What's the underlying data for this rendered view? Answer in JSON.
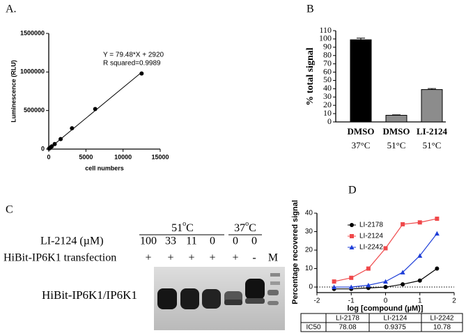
{
  "chart_data": [
    {
      "type": "scatter",
      "panel_label": "A.",
      "y_label": "Luminescence (RLU)",
      "x_label": "cell numbers",
      "annotations": [
        "Y = 79.48*X + 2920",
        "R squared=0.9989"
      ],
      "x": [
        50,
        100,
        200,
        400,
        800,
        1600,
        3125,
        6250,
        12500
      ],
      "values": [
        7000,
        11000,
        19000,
        35000,
        66000,
        130000,
        270000,
        520000,
        980000
      ],
      "fit": {
        "x": [
          0,
          12500
        ],
        "values": [
          2920,
          996420
        ]
      },
      "color": "#000000",
      "xlim": [
        0,
        15000
      ],
      "xticks": [
        0,
        5000,
        10000,
        15000
      ],
      "ylim": [
        0,
        1500000
      ],
      "yticks": [
        0,
        500000,
        1000000,
        1500000
      ]
    },
    {
      "type": "bar",
      "panel_label": "B",
      "y_label": "% total signal",
      "categories": [
        "DMSO",
        "DMSO",
        "LI-2124"
      ],
      "subcategories": [
        "37°C",
        "51°C",
        "51°C"
      ],
      "values": [
        99,
        8,
        39
      ],
      "errors": [
        2,
        0.5,
        1.2
      ],
      "colors": [
        "#000000",
        "#8c8c8c",
        "#8c8c8c"
      ],
      "ylim": [
        0,
        110
      ],
      "yticks": [
        0,
        10,
        20,
        30,
        40,
        50,
        60,
        70,
        80,
        90,
        100,
        110
      ]
    },
    {
      "type": "line",
      "panel_label": "D",
      "y_label": "Percentage recovered signal",
      "x_label": "log [compound (µM)]",
      "x": [
        -1.5,
        -1,
        -0.5,
        0,
        0.5,
        1,
        1.5
      ],
      "series": [
        {
          "name": "LI-2178",
          "color": "#000000",
          "marker": "circle",
          "values": [
            -1,
            -1,
            -0.5,
            0,
            1.5,
            3.5,
            10
          ]
        },
        {
          "name": "LI-2124",
          "color": "#f0484a",
          "marker": "square",
          "values": [
            3,
            5,
            10,
            21,
            34,
            35,
            37
          ]
        },
        {
          "name": "LI-2242",
          "color": "#1f3fd8",
          "marker": "triangle",
          "values": [
            0,
            0,
            1,
            3,
            8,
            17,
            29
          ]
        }
      ],
      "xlim": [
        -2,
        2
      ],
      "xticks": [
        -2,
        -1,
        0,
        1,
        2
      ],
      "ylim": [
        -3,
        40
      ],
      "yticks": [
        0,
        10,
        20,
        30,
        40
      ],
      "table": {
        "header": [
          "LI-2178",
          "LI-2124",
          "LI-2242"
        ],
        "row_label": "IC50",
        "row": [
          "78.08",
          "0.9375",
          "10.78"
        ]
      }
    }
  ],
  "blot": {
    "panel_label": "C",
    "temperatures": [
      {
        "value": "51",
        "deg": "o",
        "unit": "C"
      },
      {
        "value": "37",
        "deg": "o",
        "unit": "C"
      }
    ],
    "dose_label": "LI-2124 (µM)",
    "doses": [
      "100",
      "33",
      "11",
      "0",
      "0",
      "0"
    ],
    "transfection_label": "HiBit-IP6K1 transfection",
    "transfection": [
      "+",
      "+",
      "+",
      "+",
      "+",
      "-"
    ],
    "marker": "M",
    "band_label": "HiBit-IP6K1/IP6K1"
  }
}
